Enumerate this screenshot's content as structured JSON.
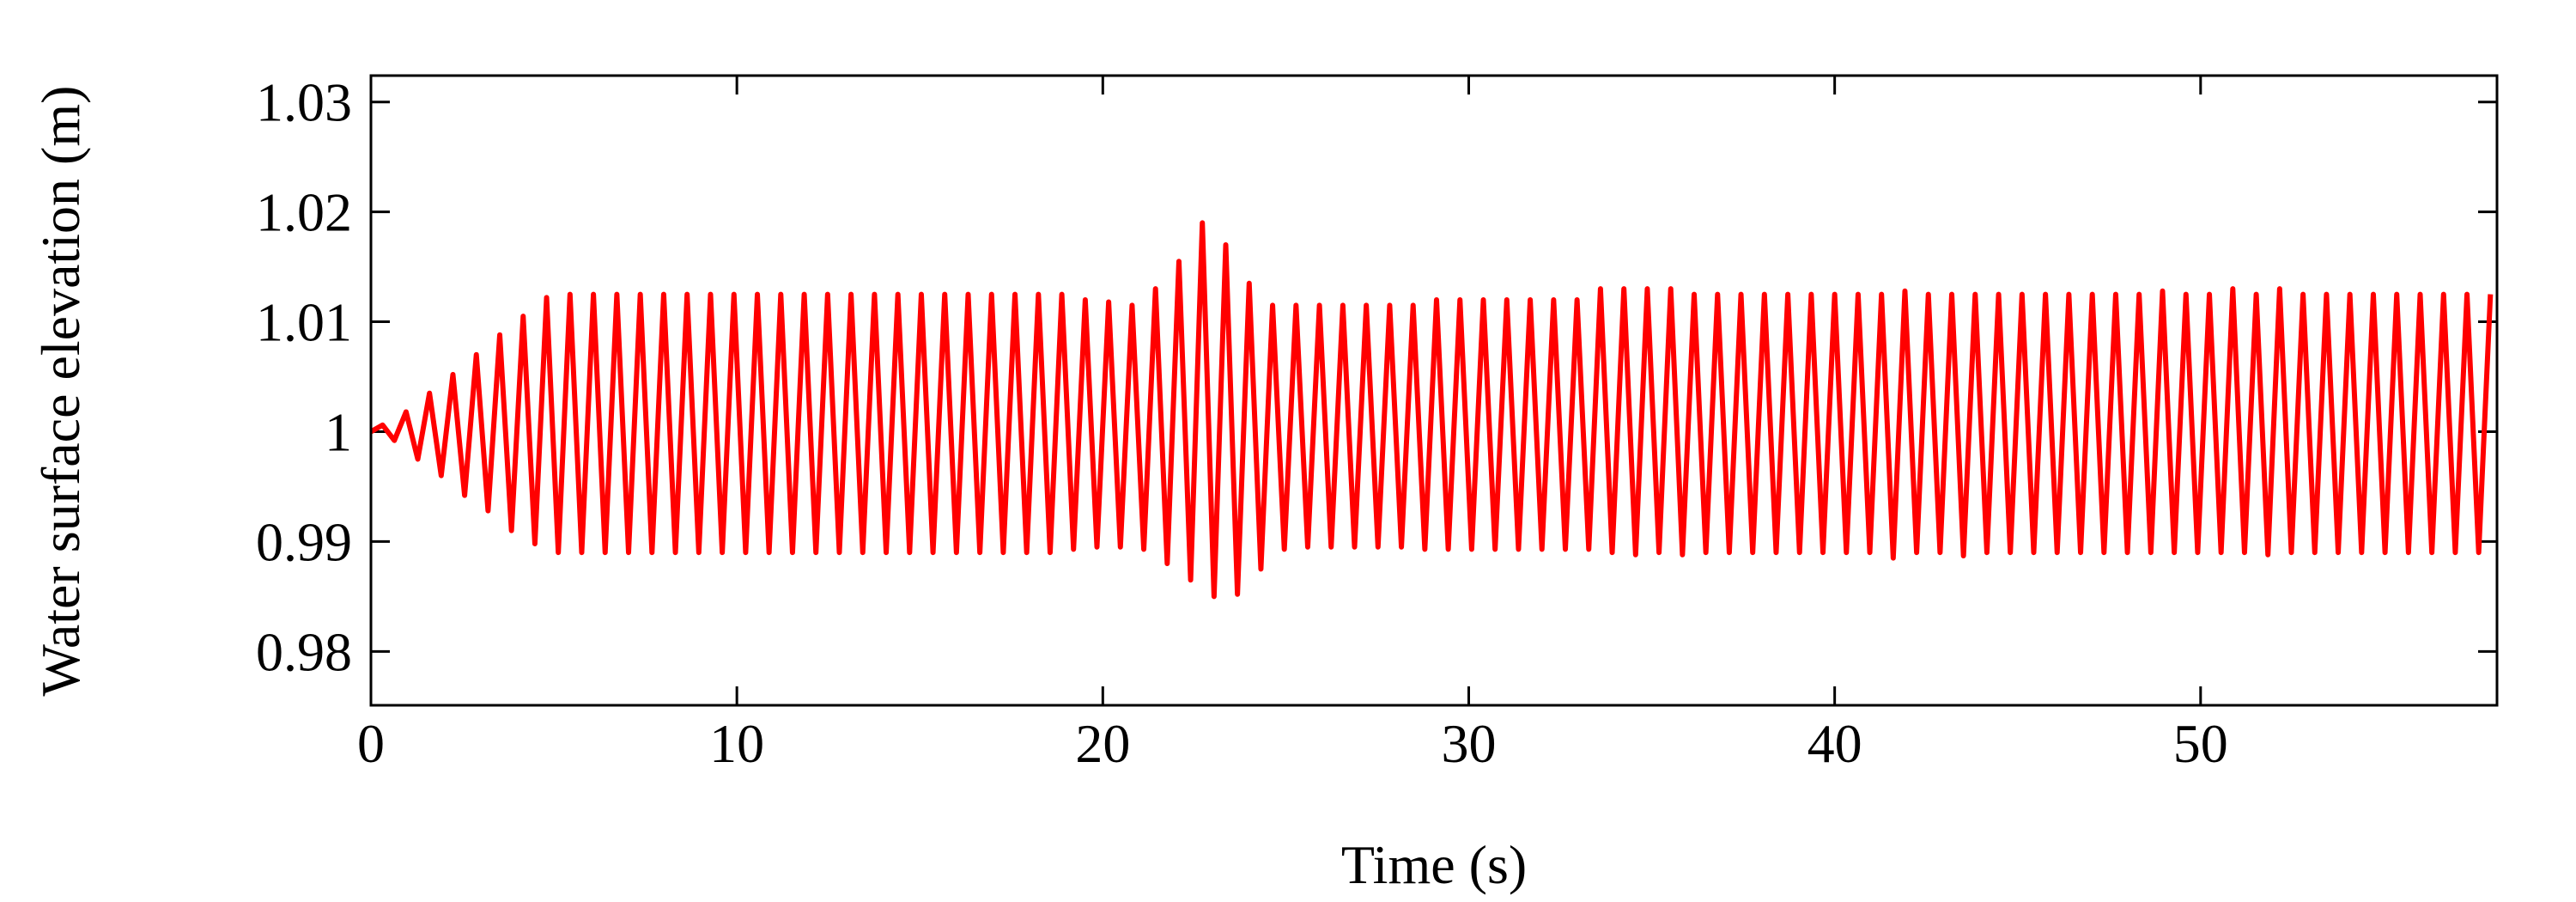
{
  "chart_data": {
    "type": "line",
    "x_label": "Time (s)",
    "y_label": "Water surface elevation (m)",
    "x": [
      0,
      0.32,
      0.64,
      0.96,
      1.28,
      1.6,
      1.92,
      2.24,
      2.56,
      2.88,
      3.2,
      3.52,
      3.84,
      4.16,
      4.48,
      4.8,
      5.12,
      5.44,
      5.76,
      6.08,
      6.4,
      6.72,
      7.04,
      7.36,
      7.68,
      8,
      8.32,
      8.64,
      8.96,
      9.28,
      9.6,
      9.92,
      10.24,
      10.56,
      10.88,
      11.2,
      11.52,
      11.84,
      12.16,
      12.48,
      12.8,
      13.12,
      13.44,
      13.76,
      14.08,
      14.4,
      14.72,
      15.04,
      15.36,
      15.68,
      16,
      16.32,
      16.64,
      16.96,
      17.28,
      17.6,
      17.92,
      18.24,
      18.56,
      18.88,
      19.2,
      19.52,
      19.84,
      20.16,
      20.48,
      20.8,
      21.12,
      21.44,
      21.76,
      22.08,
      22.4,
      22.72,
      23.04,
      23.36,
      23.68,
      24,
      24.32,
      24.64,
      24.96,
      25.28,
      25.6,
      25.92,
      26.24,
      26.56,
      26.88,
      27.2,
      27.52,
      27.84,
      28.16,
      28.48,
      28.8,
      29.12,
      29.44,
      29.76,
      30.08,
      30.4,
      30.72,
      31.04,
      31.36,
      31.68,
      32,
      32.32,
      32.64,
      32.96,
      33.28,
      33.6,
      33.92,
      34.24,
      34.56,
      34.88,
      35.2,
      35.52,
      35.84,
      36.16,
      36.48,
      36.8,
      37.12,
      37.44,
      37.76,
      38.08,
      38.4,
      38.72,
      39.04,
      39.36,
      39.68,
      40,
      40.32,
      40.64,
      40.96,
      41.28,
      41.6,
      41.92,
      42.24,
      42.56,
      42.88,
      43.2,
      43.52,
      43.84,
      44.16,
      44.48,
      44.8,
      45.12,
      45.44,
      45.76,
      46.08,
      46.4,
      46.72,
      47.04,
      47.36,
      47.68,
      48,
      48.32,
      48.64,
      48.96,
      49.28,
      49.6,
      49.92,
      50.24,
      50.56,
      50.88,
      51.2,
      51.52,
      51.84,
      52.16,
      52.48,
      52.8,
      53.12,
      53.44,
      53.76,
      54.08,
      54.4,
      54.72,
      55.04,
      55.36,
      55.68,
      56,
      56.32,
      56.64,
      56.96,
      57.28,
      57.6,
      57.92
    ],
    "series": [
      {
        "color": "#ff0000",
        "values": [
          1.0,
          1.0006,
          0.9992,
          1.0018,
          0.9975,
          1.0035,
          0.996,
          1.0052,
          0.9942,
          1.007,
          0.9928,
          1.0088,
          0.991,
          1.0105,
          0.9898,
          1.0122,
          0.989,
          1.0125,
          0.989,
          1.0125,
          0.989,
          1.0125,
          0.989,
          1.0125,
          0.989,
          1.0125,
          0.989,
          1.0125,
          0.989,
          1.0125,
          0.989,
          1.0125,
          0.989,
          1.0125,
          0.989,
          1.0125,
          0.989,
          1.0125,
          0.989,
          1.0125,
          0.989,
          1.0125,
          0.989,
          1.0125,
          0.989,
          1.0125,
          0.989,
          1.0125,
          0.989,
          1.0125,
          0.989,
          1.0125,
          0.989,
          1.0125,
          0.989,
          1.0125,
          0.989,
          1.0125,
          0.989,
          1.0125,
          0.9893,
          1.012,
          0.9895,
          1.0118,
          0.9895,
          1.0115,
          0.9893,
          1.013,
          0.988,
          1.0155,
          0.9865,
          1.019,
          0.985,
          1.017,
          0.9852,
          1.0135,
          0.9875,
          1.0115,
          0.9893,
          1.0115,
          0.9895,
          1.0115,
          0.9895,
          1.0115,
          0.9895,
          1.0115,
          0.9895,
          1.0115,
          0.9895,
          1.0115,
          0.9893,
          1.012,
          0.9893,
          1.012,
          0.9893,
          1.012,
          0.9893,
          1.012,
          0.9893,
          1.012,
          0.9893,
          1.012,
          0.9893,
          1.012,
          0.9893,
          1.013,
          0.989,
          1.013,
          0.9888,
          1.013,
          0.989,
          1.013,
          0.9888,
          1.0125,
          0.989,
          1.0125,
          0.989,
          1.0125,
          0.989,
          1.0125,
          0.989,
          1.0125,
          0.989,
          1.0125,
          0.989,
          1.0125,
          0.989,
          1.0125,
          0.989,
          1.0125,
          0.9885,
          1.0128,
          0.989,
          1.0125,
          0.989,
          1.0125,
          0.9887,
          1.0125,
          0.989,
          1.0125,
          0.989,
          1.0125,
          0.989,
          1.0125,
          0.989,
          1.0125,
          0.989,
          1.0125,
          0.989,
          1.0125,
          0.989,
          1.0125,
          0.989,
          1.0128,
          0.989,
          1.0125,
          0.989,
          1.0125,
          0.989,
          1.013,
          0.989,
          1.0125,
          0.9888,
          1.013,
          0.989,
          1.0125,
          0.989,
          1.0125,
          0.989,
          1.0125,
          0.989,
          1.0125,
          0.989,
          1.0125,
          0.989,
          1.0125,
          0.989,
          1.0125,
          0.989,
          1.0125,
          0.989,
          1.0125
        ]
      }
    ],
    "xlim": [
      0,
      58.1
    ],
    "ylim": [
      0.9751,
      1.0324
    ],
    "xticks": [
      0,
      10,
      20,
      30,
      40,
      50
    ],
    "yticks": [
      0.98,
      0.99,
      1,
      1.01,
      1.02,
      1.03
    ],
    "grid": false
  }
}
